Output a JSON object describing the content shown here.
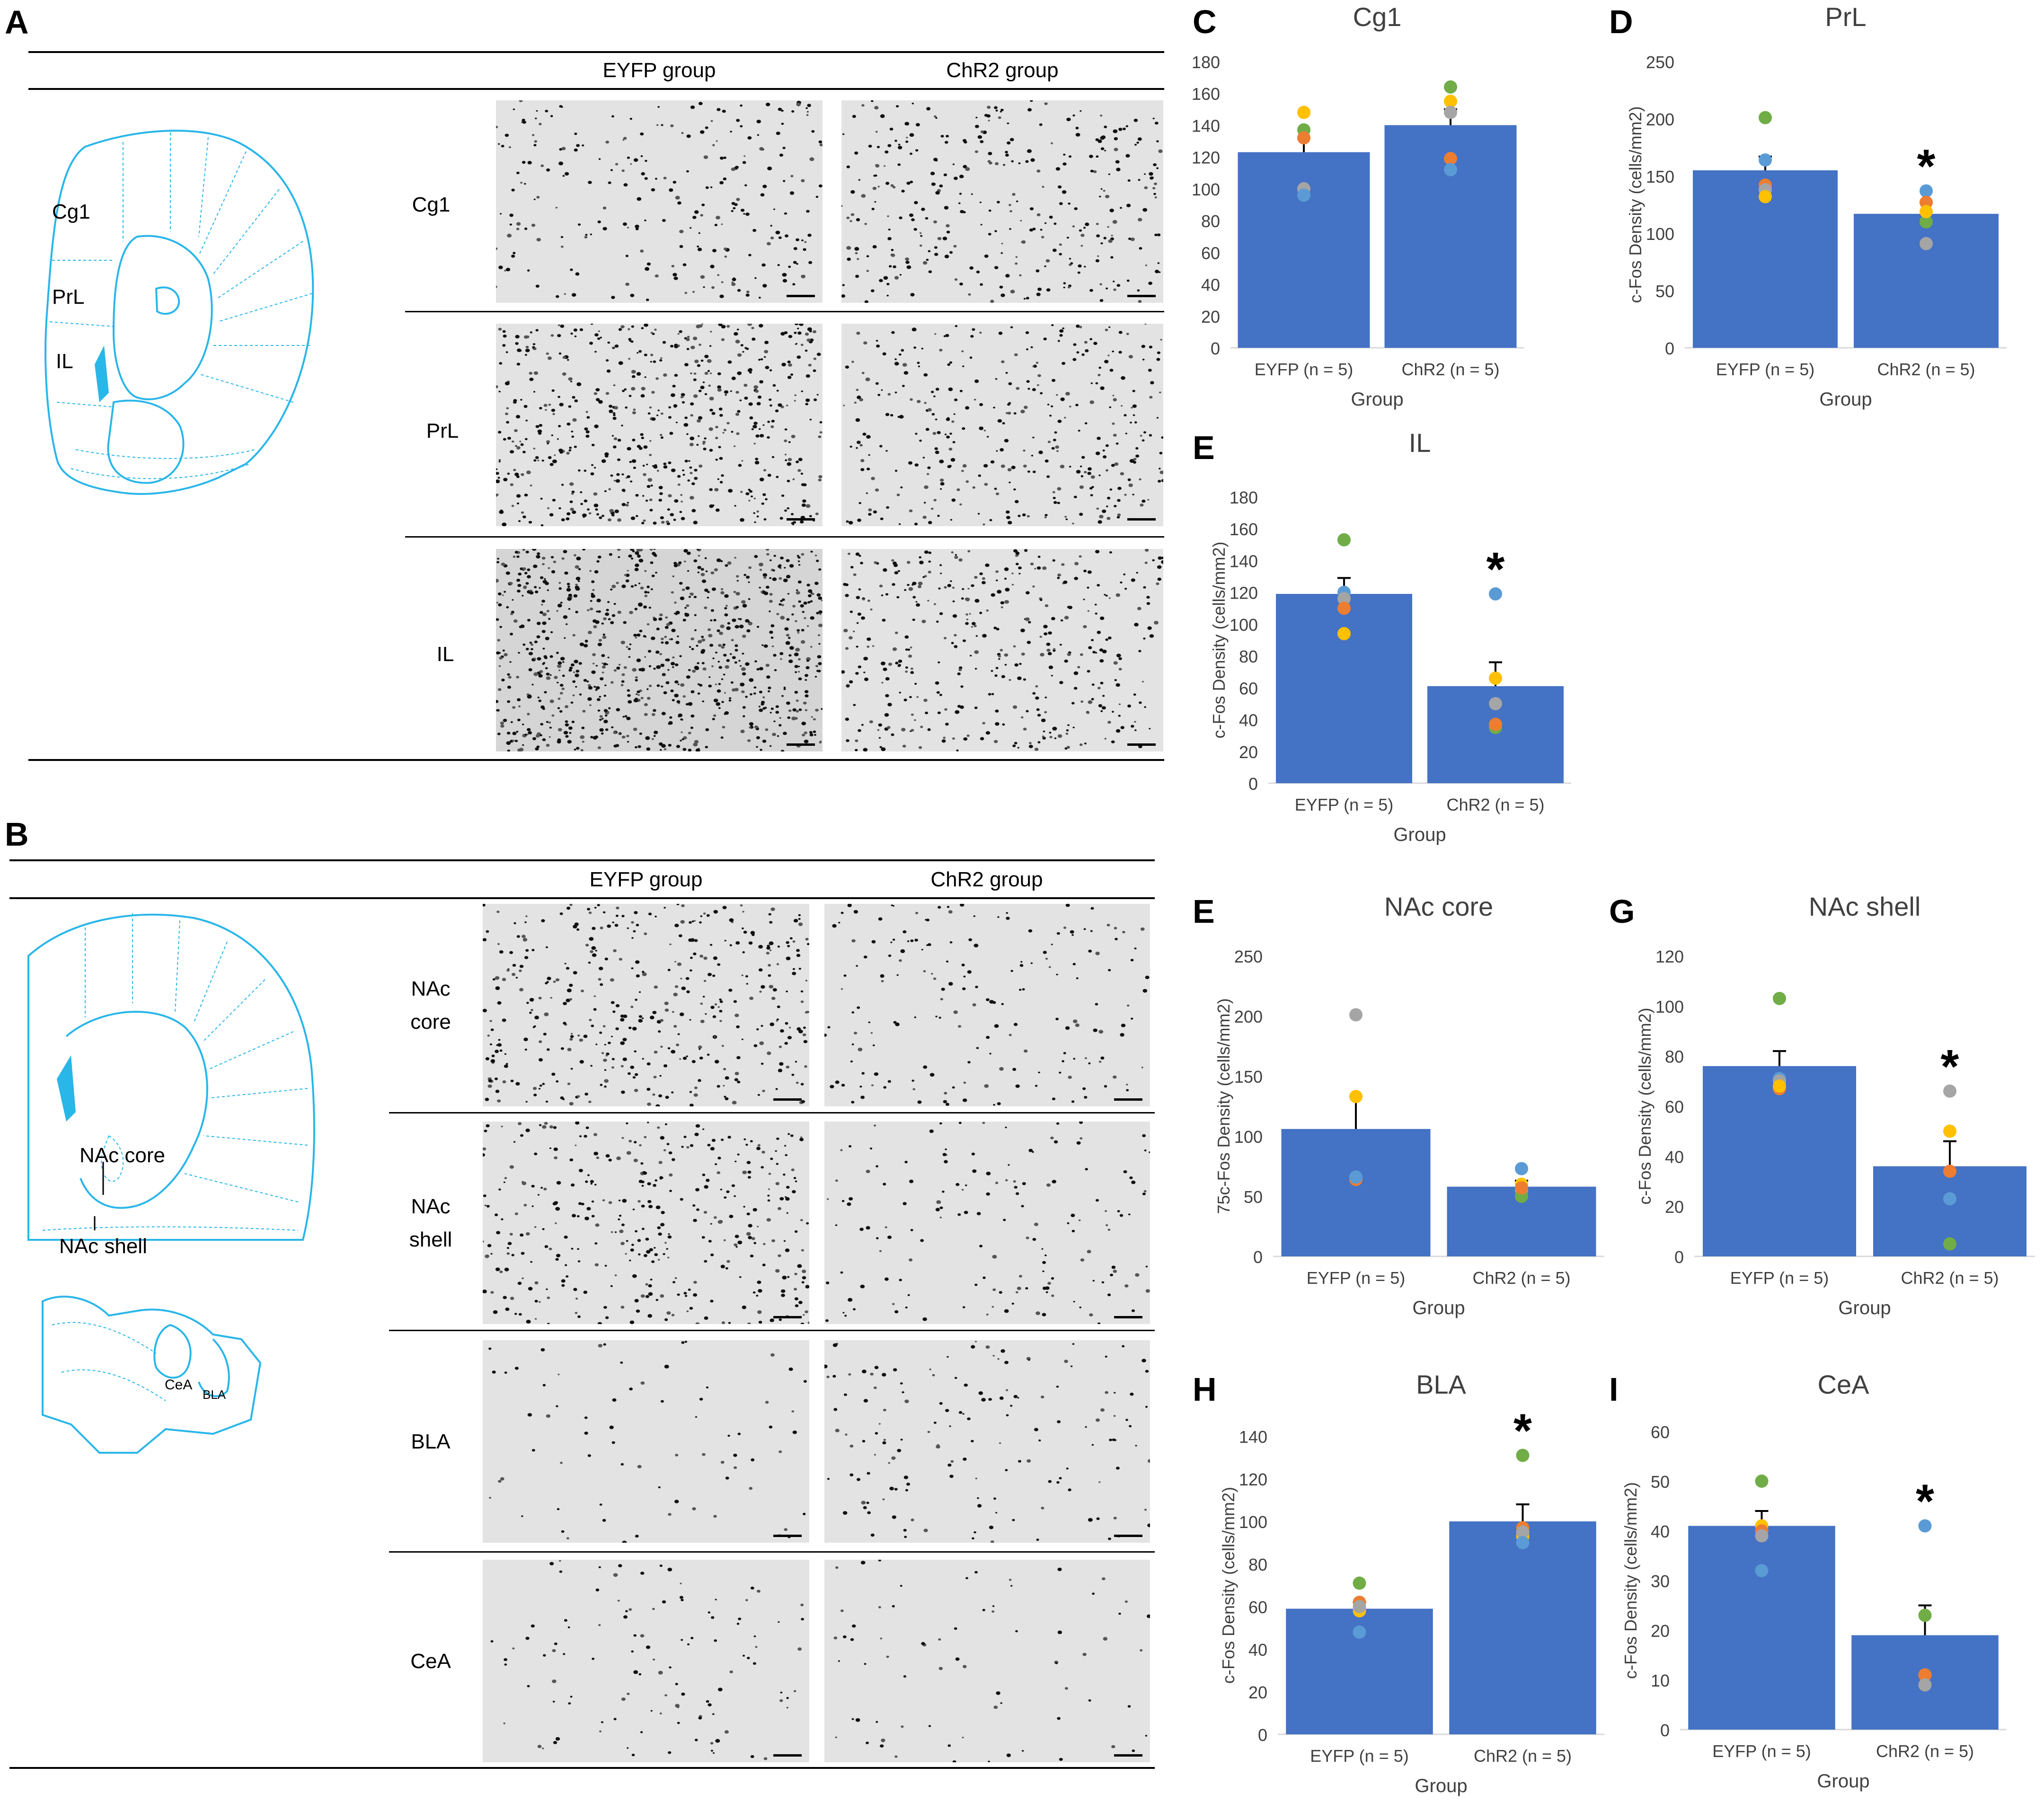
{
  "panelA": {
    "letter": "A",
    "col_headers": [
      "EYFP group",
      "ChR2 group"
    ],
    "rows": [
      "Cg1",
      "PrL",
      "IL"
    ],
    "atlas_labels": [
      "Cg1",
      "PrL",
      "IL"
    ]
  },
  "panelB": {
    "letter": "B",
    "col_headers": [
      "EYFP group",
      "ChR2 group"
    ],
    "rows": [
      "NAc core",
      "NAc shell",
      "BLA",
      "CeA"
    ],
    "atlas_labels": [
      "NAc core",
      "NAc shell",
      "CeA",
      "BLA"
    ]
  },
  "colors": {
    "bar": "#4472C4",
    "atlas": "#29B6E8",
    "dots": {
      "blue": "#5B9BD5",
      "orange": "#ED7D31",
      "gray": "#A5A5A5",
      "yellow": "#FFC000",
      "green": "#70AD47"
    }
  },
  "chart_data": [
    {
      "panel": "C",
      "type": "bar",
      "title": "Cg1",
      "xlabel": "Group",
      "ylabel": "c-Fos Density (cells/mm2)",
      "categories": [
        "EYFP (n = 5)",
        "ChR2 (n = 5)"
      ],
      "values": [
        123,
        140
      ],
      "errors": [
        9,
        10
      ],
      "ylim": [
        0,
        180
      ],
      "yticks": [
        0,
        20,
        40,
        60,
        80,
        100,
        120,
        140,
        160,
        180
      ],
      "significance": [
        false,
        false
      ],
      "points": [
        {
          "color": "yellow",
          "values": [
            148,
            155
          ]
        },
        {
          "color": "green",
          "values": [
            137,
            164
          ]
        },
        {
          "color": "orange",
          "values": [
            132,
            119
          ]
        },
        {
          "color": "gray",
          "values": [
            100,
            148
          ]
        },
        {
          "color": "blue",
          "values": [
            96,
            112
          ]
        }
      ]
    },
    {
      "panel": "D",
      "type": "bar",
      "title": "PrL",
      "xlabel": "Group",
      "ylabel": "c-Fos Density (cells/mm2)",
      "categories": [
        "EYFP (n = 5)",
        "ChR2 (n = 5)"
      ],
      "values": [
        155,
        117
      ],
      "errors": [
        12,
        10
      ],
      "ylim": [
        0,
        250
      ],
      "yticks": [
        0,
        50,
        100,
        150,
        200,
        250
      ],
      "significance": [
        false,
        true
      ],
      "points": [
        {
          "color": "green",
          "values": [
            201,
            110
          ]
        },
        {
          "color": "blue",
          "values": [
            164,
            137
          ]
        },
        {
          "color": "orange",
          "values": [
            142,
            127
          ]
        },
        {
          "color": "gray",
          "values": [
            138,
            91
          ]
        },
        {
          "color": "yellow",
          "values": [
            132,
            119
          ]
        }
      ]
    },
    {
      "panel": "E",
      "type": "bar",
      "title": "IL",
      "xlabel": "Group",
      "ylabel": "c-Fos Density (cells/mm2)",
      "categories": [
        "EYFP (n = 5)",
        "ChR2 (n = 5)"
      ],
      "values": [
        119,
        61
      ],
      "errors": [
        10,
        15
      ],
      "ylim": [
        0,
        180
      ],
      "yticks": [
        0,
        20,
        40,
        60,
        80,
        100,
        120,
        140,
        160,
        180
      ],
      "significance": [
        false,
        true
      ],
      "points": [
        {
          "color": "green",
          "values": [
            153,
            35
          ]
        },
        {
          "color": "blue",
          "values": [
            120,
            119
          ]
        },
        {
          "color": "gray",
          "values": [
            116,
            50
          ]
        },
        {
          "color": "orange",
          "values": [
            110,
            37
          ]
        },
        {
          "color": "yellow",
          "values": [
            94,
            66
          ]
        }
      ]
    },
    {
      "panel": "E",
      "type": "bar",
      "title": "NAc core",
      "xlabel": "Group",
      "ylabel": "75c-Fos Density (cells/mm2)",
      "categories": [
        "EYFP (n = 5)",
        "ChR2 (n = 5)"
      ],
      "values": [
        106,
        58
      ],
      "errors": [
        27,
        5
      ],
      "ylim": [
        0,
        250
      ],
      "yticks": [
        0,
        50,
        100,
        150,
        200,
        250
      ],
      "significance": [
        false,
        false
      ],
      "points": [
        {
          "color": "gray",
          "values": [
            201,
            55
          ]
        },
        {
          "color": "yellow",
          "values": [
            133,
            60
          ]
        },
        {
          "color": "green",
          "values": [
            65,
            50
          ]
        },
        {
          "color": "orange",
          "values": [
            64,
            57
          ]
        },
        {
          "color": "blue",
          "values": [
            66,
            73
          ]
        }
      ]
    },
    {
      "panel": "G",
      "type": "bar",
      "title": "NAc shell",
      "xlabel": "Group",
      "ylabel": "c-Fos Density (cells/mm2)",
      "categories": [
        "EYFP (n = 5)",
        "ChR2 (n = 5)"
      ],
      "values": [
        76,
        36
      ],
      "errors": [
        6,
        10
      ],
      "ylim": [
        0,
        120
      ],
      "yticks": [
        0,
        20,
        40,
        60,
        80,
        100,
        120
      ],
      "significance": [
        false,
        true
      ],
      "points": [
        {
          "color": "green",
          "values": [
            103,
            5
          ]
        },
        {
          "color": "blue",
          "values": [
            71,
            23
          ]
        },
        {
          "color": "gray",
          "values": [
            70,
            66
          ]
        },
        {
          "color": "orange",
          "values": [
            67,
            34
          ]
        },
        {
          "color": "yellow",
          "values": [
            68,
            50
          ]
        }
      ]
    },
    {
      "panel": "H",
      "type": "bar",
      "title": "BLA",
      "xlabel": "Group",
      "ylabel": "c-Fos Density (cells/mm2)",
      "categories": [
        "EYFP (n = 5)",
        "ChR2 (n = 5)"
      ],
      "values": [
        59,
        100
      ],
      "errors": [
        3,
        8
      ],
      "ylim": [
        0,
        140
      ],
      "yticks": [
        0,
        20,
        40,
        60,
        80,
        100,
        120,
        140
      ],
      "significance": [
        false,
        true
      ],
      "points": [
        {
          "color": "green",
          "values": [
            71,
            131
          ]
        },
        {
          "color": "orange",
          "values": [
            62,
            97
          ]
        },
        {
          "color": "yellow",
          "values": [
            58,
            93
          ]
        },
        {
          "color": "gray",
          "values": [
            60,
            95
          ]
        },
        {
          "color": "blue",
          "values": [
            48,
            90
          ]
        }
      ]
    },
    {
      "panel": "I",
      "type": "bar",
      "title": "CeA",
      "xlabel": "Group",
      "ylabel": "c-Fos Density (cells/mm2)",
      "categories": [
        "EYFP (n = 5)",
        "ChR2 (n = 5)"
      ],
      "values": [
        41,
        19
      ],
      "errors": [
        3,
        6
      ],
      "ylim": [
        0,
        60
      ],
      "yticks": [
        0,
        10,
        20,
        30,
        40,
        50,
        60
      ],
      "significance": [
        false,
        true
      ],
      "points": [
        {
          "color": "green",
          "values": [
            50,
            23
          ]
        },
        {
          "color": "yellow",
          "values": [
            41,
            11
          ]
        },
        {
          "color": "orange",
          "values": [
            40,
            11
          ]
        },
        {
          "color": "gray",
          "values": [
            39,
            9
          ]
        },
        {
          "color": "blue",
          "values": [
            32,
            41
          ]
        }
      ]
    }
  ]
}
